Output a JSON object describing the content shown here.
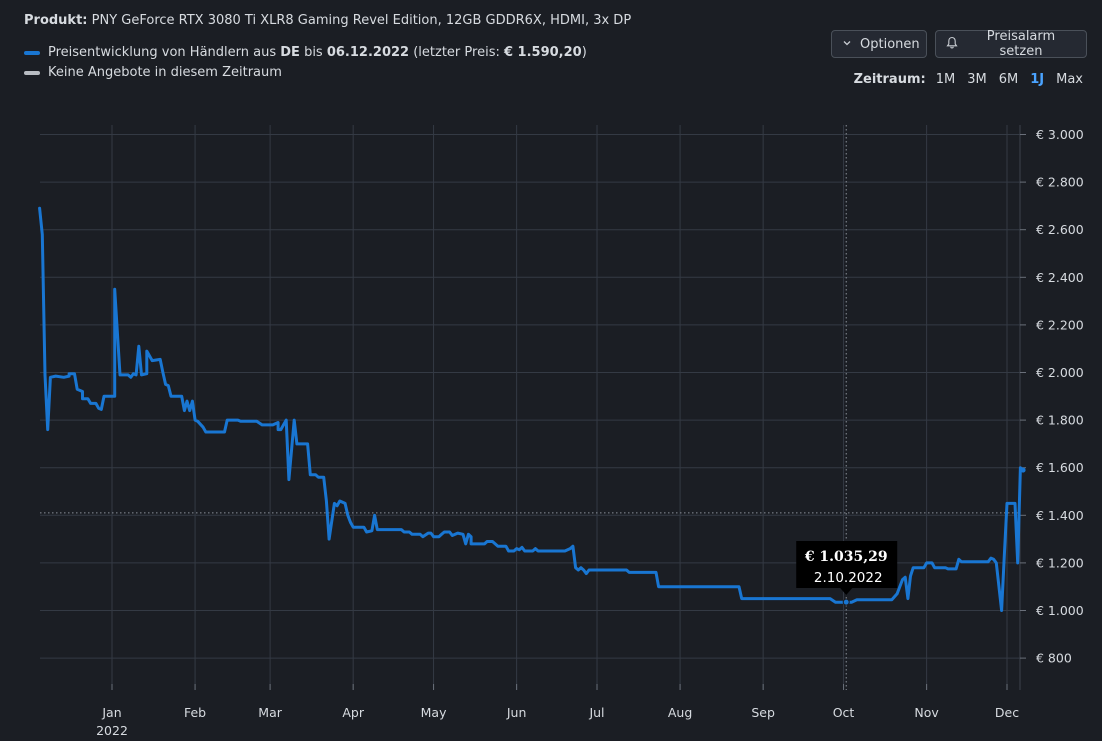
{
  "header": {
    "product_label": "Produkt:",
    "product_name": "PNY GeForce RTX 3080 Ti XLR8 Gaming Revel Edition, 12GB GDDR6X, HDMI, 3x DP"
  },
  "legend": {
    "series_prefix": "Preisentwicklung von Händlern aus",
    "series_country": "DE",
    "series_mid": "bis",
    "series_date": "06.12.2022",
    "series_open": "(letzter Preis:",
    "series_price": "€ 1.590,20",
    "series_close": ")",
    "no_offers": "Keine Angebote in diesem Zeitraum",
    "series_color": "#1976d2",
    "no_offers_color": "#b8bcc2"
  },
  "toolbar": {
    "options_label": "Optionen",
    "alarm_label": "Preisalarm setzen",
    "range_label": "Zeitraum:",
    "ranges": [
      "1M",
      "3M",
      "6M",
      "1J",
      "Max"
    ],
    "active_range": "1J"
  },
  "tooltip": {
    "price": "€ 1.035,29",
    "date": "2.10.2022"
  },
  "chart_data": {
    "type": "line",
    "title": "",
    "xlabel": "",
    "ylabel": "",
    "y_unit": "€",
    "ylim": [
      700,
      3050
    ],
    "y_ticks": [
      800,
      1000,
      1200,
      1400,
      1600,
      1800,
      2000,
      2200,
      2400,
      2600,
      2800,
      3000
    ],
    "y_tick_labels": [
      "€ 800",
      "€ 1.000",
      "€ 1.200",
      "€ 1.400",
      "€ 1.600",
      "€ 1.800",
      "€ 2.000",
      "€ 2.200",
      "€ 2.400",
      "€ 2.600",
      "€ 2.800",
      "€ 3.000"
    ],
    "x_range_days": [
      -26,
      340
    ],
    "x_ticks_day": [
      0,
      31,
      59,
      90,
      120,
      151,
      181,
      212,
      243,
      273,
      304,
      334
    ],
    "x_tick_labels": [
      "Jan",
      "Feb",
      "Mar",
      "Apr",
      "May",
      "Jun",
      "Jul",
      "Aug",
      "Sep",
      "Oct",
      "Nov",
      "Dec"
    ],
    "x_year_label": "2022",
    "reference_line": 1410,
    "hover_day": 274,
    "hover_value": 1035.29,
    "series": [
      {
        "name": "Preisentwicklung DE",
        "color": "#1976d2",
        "points": [
          [
            -27,
            2690
          ],
          [
            -26,
            2580
          ],
          [
            -25,
            1990
          ],
          [
            -24,
            1760
          ],
          [
            -23,
            1980
          ],
          [
            -21,
            1985
          ],
          [
            -18,
            1980
          ],
          [
            -16,
            1985
          ],
          [
            -16,
            1995
          ],
          [
            -14,
            1995
          ],
          [
            -13,
            1930
          ],
          [
            -11,
            1920
          ],
          [
            -11,
            1890
          ],
          [
            -9,
            1890
          ],
          [
            -8,
            1870
          ],
          [
            -6,
            1870
          ],
          [
            -5,
            1850
          ],
          [
            -4,
            1845
          ],
          [
            -3,
            1900
          ],
          [
            0,
            1900
          ],
          [
            1,
            1900
          ],
          [
            1,
            2350
          ],
          [
            3,
            1990
          ],
          [
            6,
            1990
          ],
          [
            7,
            1980
          ],
          [
            8,
            1995
          ],
          [
            9,
            1990
          ],
          [
            10,
            2110
          ],
          [
            11,
            1990
          ],
          [
            13,
            1995
          ],
          [
            13,
            2090
          ],
          [
            15,
            2050
          ],
          [
            18,
            2055
          ],
          [
            19,
            2000
          ],
          [
            20,
            1950
          ],
          [
            21,
            1945
          ],
          [
            22,
            1900
          ],
          [
            25,
            1900
          ],
          [
            26,
            1900
          ],
          [
            27,
            1840
          ],
          [
            28,
            1880
          ],
          [
            29,
            1840
          ],
          [
            30,
            1880
          ],
          [
            31,
            1800
          ],
          [
            32,
            1795
          ],
          [
            34,
            1770
          ],
          [
            35,
            1750
          ],
          [
            40,
            1750
          ],
          [
            42,
            1750
          ],
          [
            43,
            1800
          ],
          [
            47,
            1800
          ],
          [
            48,
            1795
          ],
          [
            54,
            1795
          ],
          [
            56,
            1780
          ],
          [
            60,
            1780
          ],
          [
            62,
            1790
          ],
          [
            62,
            1760
          ],
          [
            63,
            1760
          ],
          [
            65,
            1800
          ],
          [
            66,
            1550
          ],
          [
            68,
            1800
          ],
          [
            69,
            1700
          ],
          [
            73,
            1700
          ],
          [
            74,
            1570
          ],
          [
            76,
            1570
          ],
          [
            77,
            1560
          ],
          [
            79,
            1560
          ],
          [
            80,
            1460
          ],
          [
            81,
            1300
          ],
          [
            83,
            1450
          ],
          [
            84,
            1440
          ],
          [
            85,
            1460
          ],
          [
            87,
            1450
          ],
          [
            88,
            1400
          ],
          [
            89,
            1370
          ],
          [
            90,
            1350
          ],
          [
            94,
            1350
          ],
          [
            95,
            1330
          ],
          [
            97,
            1335
          ],
          [
            98,
            1400
          ],
          [
            99,
            1340
          ],
          [
            102,
            1340
          ],
          [
            105,
            1340
          ],
          [
            108,
            1340
          ],
          [
            109,
            1330
          ],
          [
            111,
            1330
          ],
          [
            112,
            1320
          ],
          [
            115,
            1320
          ],
          [
            116,
            1310
          ],
          [
            118,
            1325
          ],
          [
            119,
            1325
          ],
          [
            120,
            1310
          ],
          [
            122,
            1310
          ],
          [
            123,
            1320
          ],
          [
            124,
            1330
          ],
          [
            126,
            1330
          ],
          [
            127,
            1315
          ],
          [
            129,
            1325
          ],
          [
            131,
            1320
          ],
          [
            132,
            1280
          ],
          [
            133,
            1320
          ],
          [
            134,
            1310
          ],
          [
            134,
            1280
          ],
          [
            139,
            1280
          ],
          [
            140,
            1290
          ],
          [
            142,
            1290
          ],
          [
            144,
            1270
          ],
          [
            147,
            1270
          ],
          [
            148,
            1250
          ],
          [
            150,
            1250
          ],
          [
            151,
            1260
          ],
          [
            152,
            1255
          ],
          [
            153,
            1265
          ],
          [
            154,
            1250
          ],
          [
            157,
            1250
          ],
          [
            158,
            1260
          ],
          [
            159,
            1250
          ],
          [
            162,
            1250
          ],
          [
            165,
            1250
          ],
          [
            169,
            1250
          ],
          [
            171,
            1260
          ],
          [
            172,
            1270
          ],
          [
            173,
            1180
          ],
          [
            174,
            1170
          ],
          [
            175,
            1180
          ],
          [
            176,
            1170
          ],
          [
            177,
            1155
          ],
          [
            178,
            1170
          ],
          [
            185,
            1170
          ],
          [
            192,
            1170
          ],
          [
            193,
            1160
          ],
          [
            203,
            1160
          ],
          [
            204,
            1100
          ],
          [
            225,
            1100
          ],
          [
            234,
            1100
          ],
          [
            235,
            1050
          ],
          [
            255,
            1050
          ],
          [
            268,
            1050
          ],
          [
            270,
            1035
          ],
          [
            276,
            1035
          ],
          [
            278,
            1045
          ],
          [
            291,
            1045
          ],
          [
            293,
            1070
          ],
          [
            295,
            1130
          ],
          [
            296,
            1140
          ],
          [
            297,
            1050
          ],
          [
            298,
            1145
          ],
          [
            299,
            1180
          ],
          [
            303,
            1180
          ],
          [
            304,
            1200
          ],
          [
            306,
            1200
          ],
          [
            307,
            1180
          ],
          [
            311,
            1180
          ],
          [
            312,
            1175
          ],
          [
            315,
            1175
          ],
          [
            316,
            1215
          ],
          [
            317,
            1205
          ],
          [
            320,
            1205
          ],
          [
            327,
            1205
          ],
          [
            328,
            1220
          ],
          [
            329,
            1215
          ],
          [
            330,
            1200
          ],
          [
            332,
            1000
          ],
          [
            333,
            1230
          ],
          [
            334,
            1450
          ],
          [
            337,
            1450
          ],
          [
            338,
            1200
          ],
          [
            339,
            1600
          ],
          [
            340,
            1590
          ]
        ]
      }
    ]
  }
}
